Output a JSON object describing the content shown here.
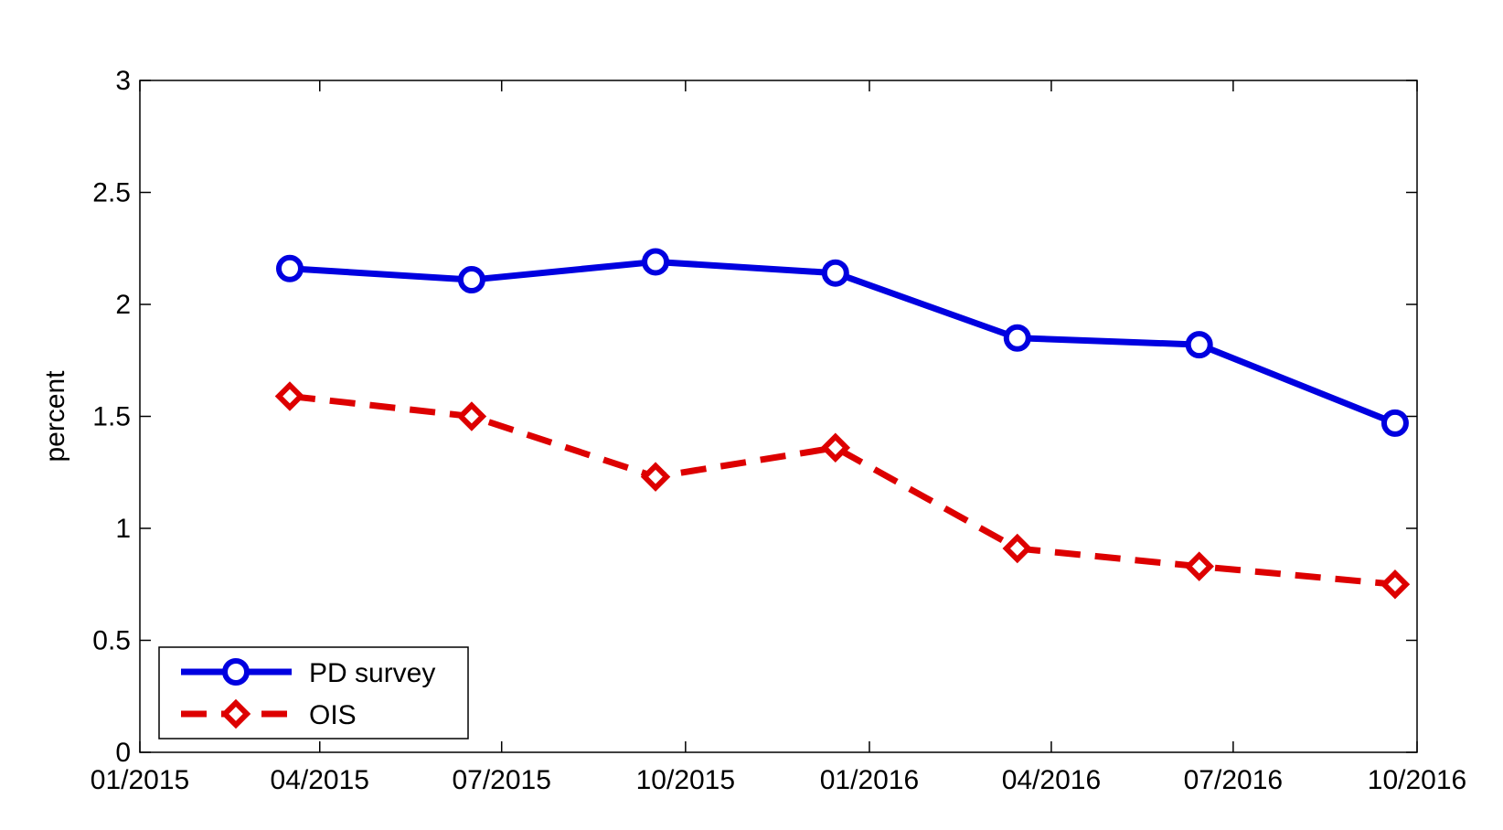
{
  "chart_data": {
    "type": "line",
    "title": "",
    "xlabel": "",
    "ylabel": "percent",
    "x_ticks": [
      "01/2015",
      "04/2015",
      "07/2015",
      "10/2015",
      "01/2016",
      "04/2016",
      "07/2016",
      "10/2016"
    ],
    "y_ticks": [
      "0",
      "0.5",
      "1",
      "1.5",
      "2",
      "2.5",
      "3"
    ],
    "ylim": [
      0,
      3
    ],
    "xlim": [
      "2015-01-01",
      "2016-10-01"
    ],
    "grid": false,
    "legend_position": "bottom-left",
    "series": [
      {
        "name": "PD survey",
        "color": "#0000e0",
        "line_style": "solid",
        "marker": "circle",
        "x": [
          "2015-03-17",
          "2015-06-16",
          "2015-09-16",
          "2015-12-15",
          "2016-03-15",
          "2016-06-14",
          "2016-09-20"
        ],
        "values": [
          2.16,
          2.11,
          2.19,
          2.14,
          1.85,
          1.82,
          1.47
        ]
      },
      {
        "name": "OIS",
        "color": "#dd0000",
        "line_style": "dashed",
        "marker": "diamond",
        "x": [
          "2015-03-17",
          "2015-06-16",
          "2015-09-16",
          "2015-12-15",
          "2016-03-15",
          "2016-06-14",
          "2016-09-20"
        ],
        "values": [
          1.59,
          1.5,
          1.23,
          1.36,
          0.91,
          0.83,
          0.75
        ]
      }
    ]
  }
}
